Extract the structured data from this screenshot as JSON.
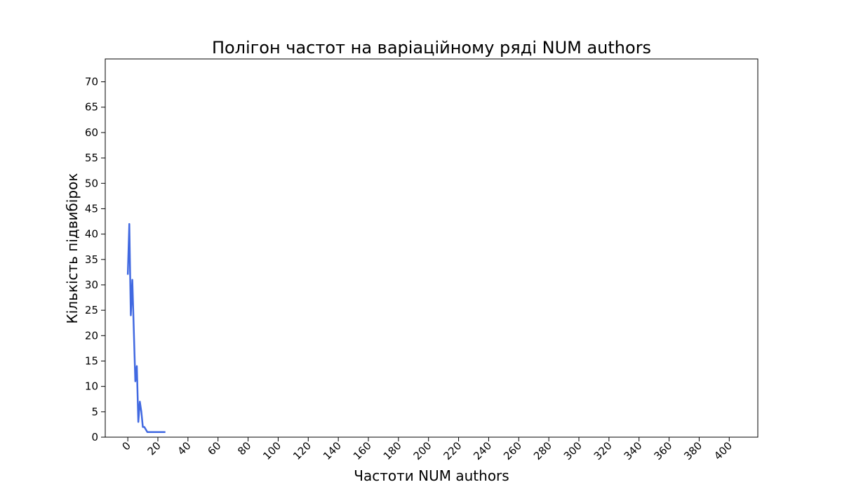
{
  "chart_data": {
    "type": "line",
    "title": "Полігон частот на варіаційному ряді NUM authors",
    "xlabel": "Частоти NUM authors",
    "ylabel": "Кількість підвибірок",
    "xlim": [
      -15,
      419
    ],
    "ylim": [
      0,
      74.5
    ],
    "xticks": [
      0,
      20,
      40,
      60,
      80,
      100,
      120,
      140,
      160,
      180,
      200,
      220,
      240,
      260,
      280,
      300,
      320,
      340,
      360,
      380,
      400
    ],
    "yticks": [
      0,
      5,
      10,
      15,
      20,
      25,
      30,
      35,
      40,
      45,
      50,
      55,
      60,
      65,
      70
    ],
    "grid": false,
    "series": [
      {
        "color": "#4169e1",
        "x": [
          0,
          1,
          2,
          3,
          4,
          5,
          6,
          7,
          8,
          9,
          10,
          11,
          12,
          13,
          14,
          15,
          16,
          17,
          18,
          19,
          20,
          21,
          22,
          23,
          24,
          25
        ],
        "y": [
          32,
          42,
          24,
          31,
          21,
          11,
          14,
          3,
          7,
          5,
          2,
          2,
          1.5,
          1,
          1,
          1,
          1,
          1,
          1,
          1,
          1,
          1,
          1,
          1,
          1,
          1
        ]
      }
    ]
  }
}
